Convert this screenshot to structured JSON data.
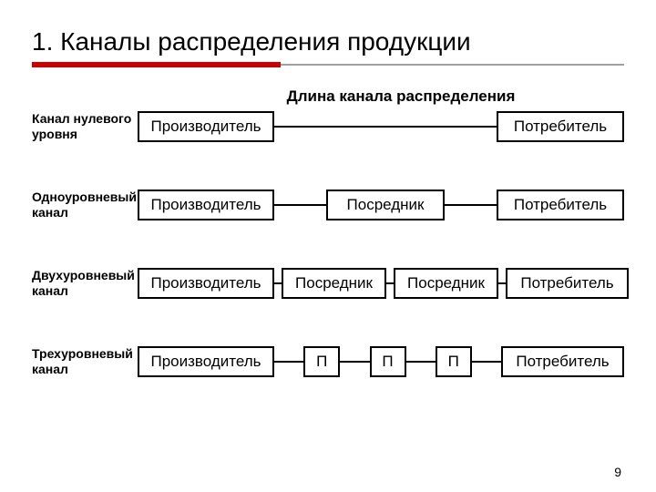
{
  "title": "1. Каналы распределения продукции",
  "subtitle": "Длина канала распределения",
  "colors": {
    "rule_red": "#cc0000",
    "rule_gray": "#a0a0a0",
    "border": "#000000",
    "text": "#000000",
    "background": "#ffffff"
  },
  "rule": {
    "red_width_pct": 42,
    "gray_width_pct": 58
  },
  "rows": [
    {
      "label": "Канал нулевого уровня",
      "nodes": [
        "Производитель",
        "Потребитель"
      ],
      "node_widths": [
        150,
        140
      ]
    },
    {
      "label": "Одноуровневый канал",
      "nodes": [
        "Производитель",
        "Посредник",
        "Потребитель"
      ],
      "node_widths": [
        150,
        130,
        140
      ]
    },
    {
      "label": "Двухуровневый канал",
      "nodes": [
        "Производитель",
        "Посредник",
        "Посредник",
        "Потребитель"
      ],
      "node_widths": [
        150,
        115,
        115,
        135
      ]
    },
    {
      "label": "Трехуровневый канал",
      "nodes": [
        "Производитель",
        "П",
        "П",
        "П",
        "Потребитель"
      ],
      "node_widths": [
        150,
        40,
        40,
        40,
        135
      ]
    }
  ],
  "page_number": "9",
  "typography": {
    "title_fontsize_pt": 21,
    "subtitle_fontsize_pt": 13,
    "label_fontsize_pt": 11,
    "node_fontsize_pt": 13,
    "font_family": "Verdana"
  }
}
